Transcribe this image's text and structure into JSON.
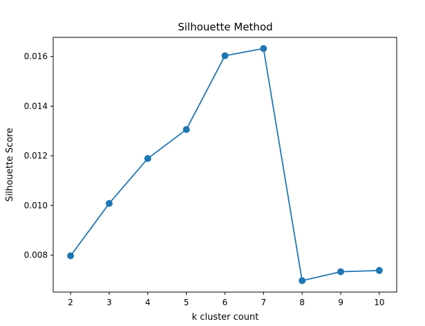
{
  "chart_data": {
    "type": "line",
    "title": "Silhouette Method",
    "xlabel": "k cluster count",
    "ylabel": "Silhouette Score",
    "x": [
      2,
      3,
      4,
      5,
      6,
      7,
      8,
      9,
      10
    ],
    "series": [
      {
        "values": [
          0.00797,
          0.01008,
          0.01189,
          0.01306,
          0.01603,
          0.01632,
          0.00697,
          0.00733,
          0.00738
        ],
        "color": "#1f77b4",
        "marker": "circle"
      }
    ],
    "xlim": [
      1.55,
      10.45
    ],
    "ylim": [
      0.00651,
      0.01677
    ],
    "xticks": [
      2,
      3,
      4,
      5,
      6,
      7,
      8,
      9,
      10
    ],
    "xtick_labels": [
      "2",
      "3",
      "4",
      "5",
      "6",
      "7",
      "8",
      "9",
      "10"
    ],
    "yticks": [
      0.008,
      0.01,
      0.012,
      0.014,
      0.016
    ],
    "ytick_labels": [
      "0.008",
      "0.010",
      "0.012",
      "0.014",
      "0.016"
    ],
    "grid": false,
    "legend": "none"
  }
}
